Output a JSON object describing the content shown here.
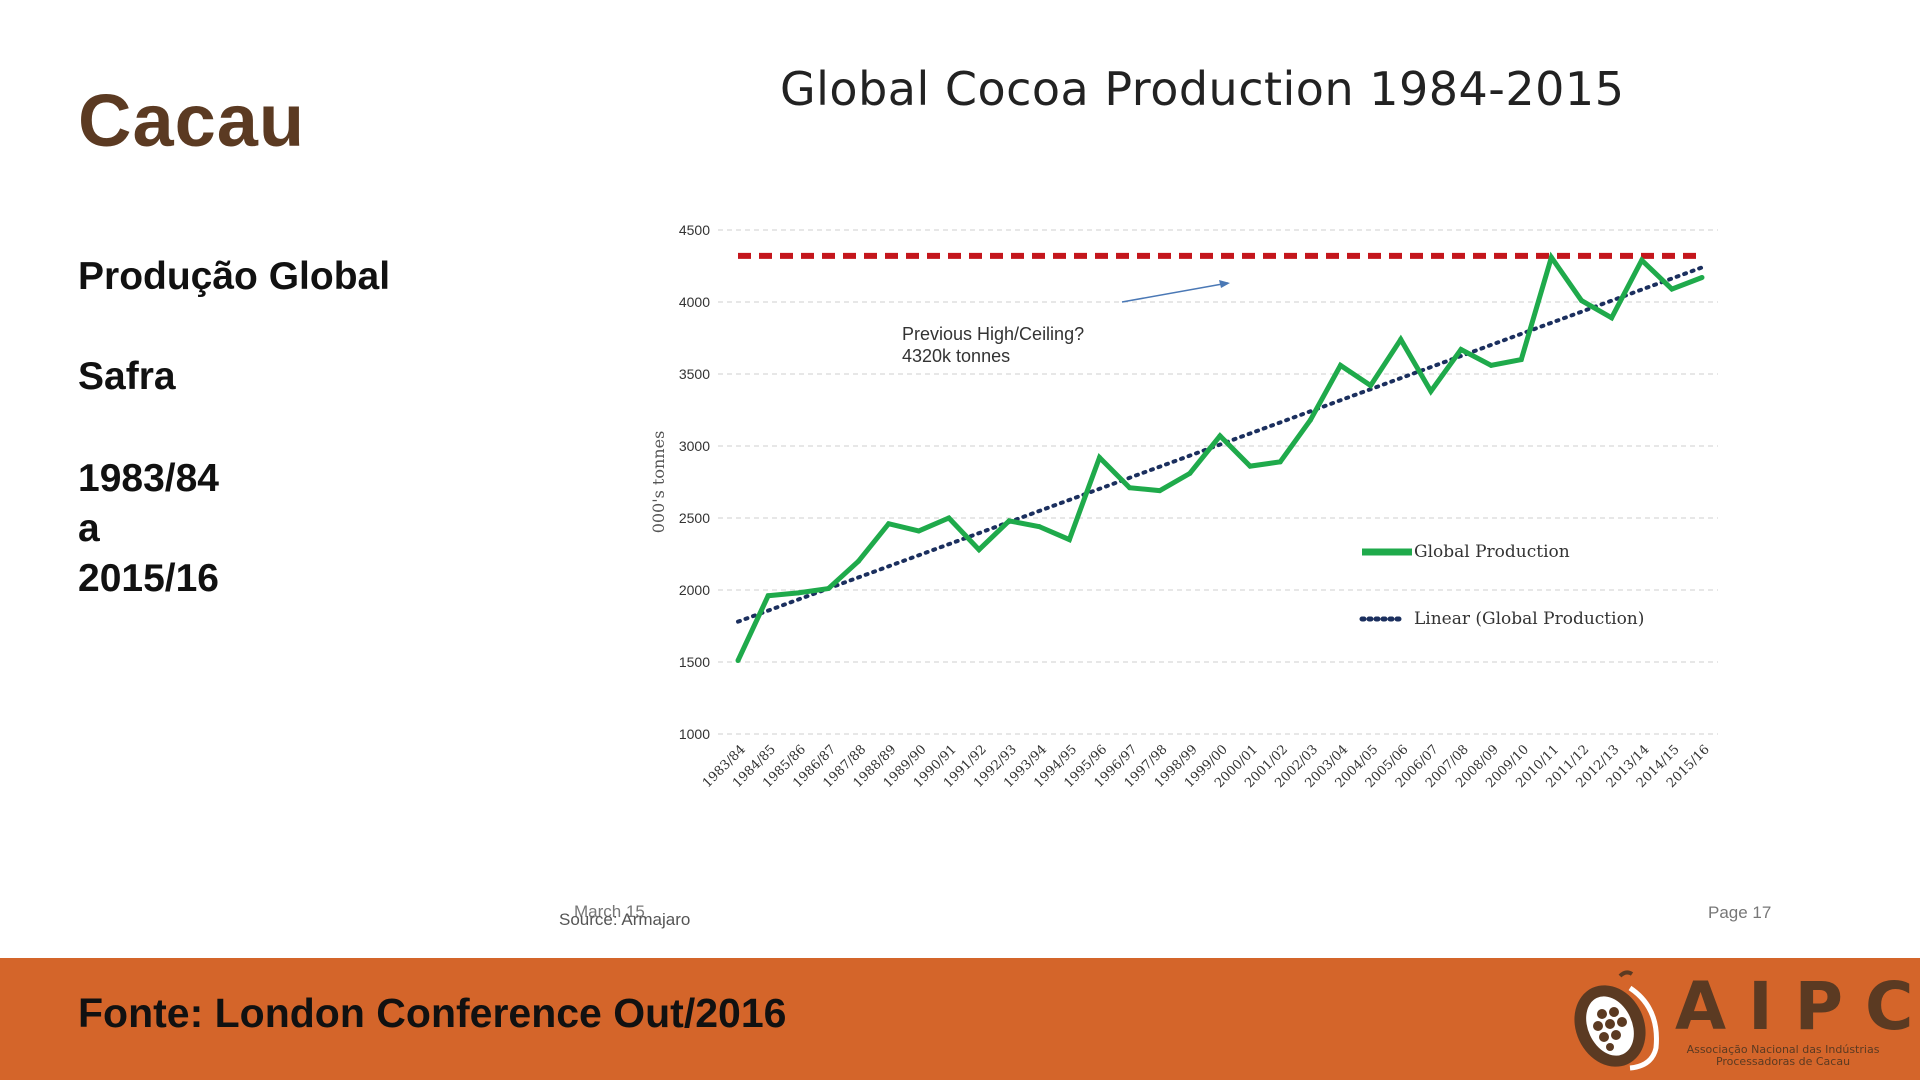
{
  "slide": {
    "title": "Cacau",
    "subtitle": "Produção Global",
    "safra_label": "Safra",
    "range_start": "1983/84",
    "range_connector": "a",
    "range_end": "2015/16"
  },
  "chart_meta": {
    "title": "Global Cocoa Production 1984-2015",
    "annotation_line1": "Previous High/Ceiling?",
    "annotation_line2": "4320k tonnes",
    "source_text": "Source: Armajaro",
    "date_text": "March 15",
    "page_text": "Page 17"
  },
  "colors": {
    "production": "#1faa4b",
    "trend": "#1b2f5e",
    "ceiling": "#c4161c",
    "title_brown": "#5b3a22",
    "footer_orange": "#d4652a"
  },
  "chart_data": {
    "type": "line",
    "title": "Global Cocoa Production 1984-2015",
    "ylabel": "000's tonnes",
    "xlabel": "",
    "ylim": [
      1000,
      4500
    ],
    "yticks": [
      1000,
      1500,
      2000,
      2500,
      3000,
      3500,
      4000,
      4500
    ],
    "grid": true,
    "legend_position": "right",
    "categories": [
      "1983/84",
      "1984/85",
      "1985/86",
      "1986/87",
      "1987/88",
      "1988/89",
      "1989/90",
      "1990/91",
      "1991/92",
      "1992/93",
      "1993/94",
      "1994/95",
      "1995/96",
      "1996/97",
      "1997/98",
      "1998/99",
      "1999/00",
      "2000/01",
      "2001/02",
      "2002/03",
      "2003/04",
      "2004/05",
      "2005/06",
      "2006/07",
      "2007/08",
      "2008/09",
      "2009/10",
      "2010/11",
      "2011/12",
      "2012/13",
      "2013/14",
      "2014/15",
      "2015/16"
    ],
    "series": [
      {
        "name": "Global Production",
        "style": "solid",
        "values": [
          1510,
          1960,
          1980,
          2010,
          2200,
          2460,
          2410,
          2500,
          2280,
          2480,
          2440,
          2350,
          2920,
          2710,
          2690,
          2810,
          3070,
          2860,
          2890,
          3180,
          3560,
          3420,
          3740,
          3380,
          3670,
          3560,
          3600,
          4310,
          4010,
          3890,
          4290,
          4090,
          4170
        ]
      },
      {
        "name": "Linear (Global Production)",
        "style": "dotted",
        "values_start": 1780,
        "values_end": 4240
      },
      {
        "name": "Previous High/Ceiling? 4320k tonnes",
        "style": "dashed",
        "value": 4320
      }
    ]
  },
  "footer": {
    "source": "Fonte: London Conference Out/2016",
    "logo_text": "AIPC",
    "logo_sub_line1": "Associação Nacional das Indústrias",
    "logo_sub_line2": "Processadoras de Cacau"
  }
}
